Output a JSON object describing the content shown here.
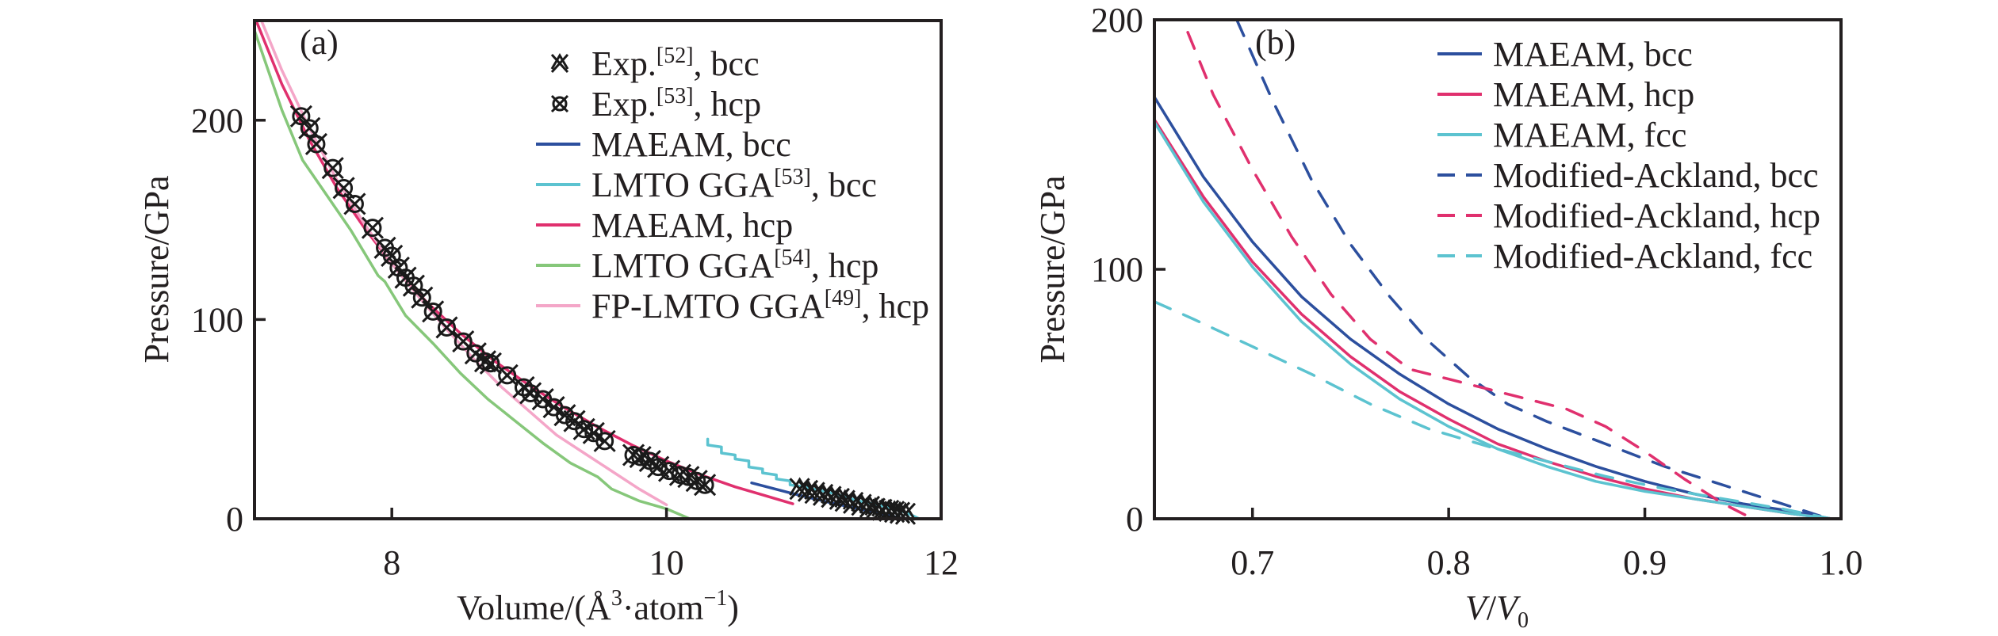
{
  "chart_data": [
    {
      "type": "line",
      "panel_label": "(a)",
      "title": "",
      "xlabel": "Volume/(Å³·atom⁻¹)",
      "xlabel_parts": {
        "main": "Volume/(Å",
        "sup1": "3",
        "mid": "·atom",
        "sup2": "−1",
        "end": ")"
      },
      "ylabel": "Pressure/GPa",
      "xlim": [
        7,
        12
      ],
      "ylim": [
        0,
        250
      ],
      "xticks": [
        8,
        10,
        12
      ],
      "xtick_labels": [
        "8",
        "10",
        "12"
      ],
      "yticks": [
        0,
        100,
        200
      ],
      "ytick_labels": [
        "0",
        "100",
        "200"
      ],
      "grid": false,
      "legend_position": "top-right",
      "series": [
        {
          "name": "Exp.[52], bcc",
          "legend": {
            "main": "Exp.",
            "ref": "[52]",
            "tail": ", bcc"
          },
          "kind": "marker",
          "marker": "x-triangle",
          "color": "#1a1a1a",
          "x": [
            10.97,
            11.03,
            11.08,
            11.14,
            11.2,
            11.26,
            11.3,
            11.36,
            11.42,
            11.48,
            11.52,
            11.57,
            11.62,
            11.66,
            11.7,
            11.74
          ],
          "y": [
            15,
            14,
            13,
            12,
            11,
            10,
            9,
            8,
            7,
            6,
            5,
            4.5,
            4,
            3.5,
            3,
            2.5
          ]
        },
        {
          "name": "Exp.[53], hcp",
          "legend": {
            "main": "Exp.",
            "ref": "[53]",
            "tail": ", hcp"
          },
          "kind": "marker",
          "marker": "circle-x",
          "color": "#1a1a1a",
          "x": [
            7.34,
            7.4,
            7.45,
            7.57,
            7.65,
            7.73,
            7.86,
            7.95,
            8.0,
            8.05,
            8.1,
            8.16,
            8.22,
            8.3,
            8.4,
            8.52,
            8.61,
            8.68,
            8.72,
            8.84,
            8.96,
            9.01,
            9.1,
            9.18,
            9.26,
            9.33,
            9.4,
            9.47,
            9.55,
            9.76,
            9.81,
            9.88,
            9.94,
            10.02,
            10.1,
            10.16,
            10.22,
            10.28
          ],
          "y": [
            202,
            196,
            188,
            176,
            166,
            158,
            146,
            136,
            132,
            126,
            121,
            117,
            111,
            104,
            96,
            89,
            83,
            79,
            78,
            72,
            66,
            63,
            60,
            56,
            52,
            49,
            45,
            43,
            39,
            32,
            31,
            29,
            26,
            24,
            22,
            21,
            19,
            17
          ]
        },
        {
          "name": "MAEAM, bcc",
          "legend": {
            "main": "MAEAM, bcc",
            "ref": "",
            "tail": ""
          },
          "kind": "line",
          "color": "#2c4f9e",
          "x": [
            10.62,
            10.9,
            11.2,
            11.5,
            11.73
          ],
          "y": [
            18,
            13,
            8,
            3.5,
            0
          ]
        },
        {
          "name": "LMTO GGA[53], bcc",
          "legend": {
            "main": "LMTO GGA",
            "ref": "[53]",
            "tail": ", bcc"
          },
          "kind": "line",
          "color": "#5cc3d0",
          "x": [
            10.3,
            10.3,
            10.4,
            10.4,
            10.5,
            10.5,
            10.6,
            10.6,
            10.7,
            10.7,
            10.8,
            10.8,
            10.9,
            10.9,
            11.0,
            11.2,
            11.4,
            11.6,
            11.75,
            11.84
          ],
          "y": [
            40,
            37,
            36,
            33,
            32,
            30,
            29,
            26,
            25,
            23,
            22,
            20,
            19,
            17,
            16,
            13,
            9,
            6,
            3,
            0
          ]
        },
        {
          "name": "MAEAM, hcp",
          "legend": {
            "main": "MAEAM, hcp",
            "ref": "",
            "tail": ""
          },
          "kind": "line",
          "color": "#e0306e",
          "x": [
            7.0,
            7.2,
            7.4,
            7.6,
            7.8,
            8.0,
            8.25,
            8.5,
            8.75,
            9.0,
            9.25,
            9.5,
            9.75,
            10.0,
            10.25,
            10.5,
            10.7,
            10.92
          ],
          "y": [
            252,
            218,
            190,
            166,
            146,
            128,
            109,
            93,
            79,
            67,
            56,
            46,
            37,
            29,
            22,
            16,
            12,
            7.5
          ]
        },
        {
          "name": "LMTO GGA[54], hcp",
          "legend": {
            "main": "LMTO GGA",
            "ref": "[54]",
            "tail": ", hcp"
          },
          "kind": "line",
          "color": "#86c77a",
          "x": [
            7.0,
            7.2,
            7.35,
            7.5,
            7.7,
            7.9,
            7.95,
            8.1,
            8.3,
            8.5,
            8.7,
            8.9,
            9.1,
            9.3,
            9.5,
            9.6,
            9.8,
            10.0,
            10.17
          ],
          "y": [
            245,
            205,
            180,
            165,
            145,
            122,
            119,
            102,
            88,
            73,
            60,
            49,
            38,
            28,
            21,
            15,
            9,
            5,
            0
          ]
        },
        {
          "name": "FP-LMTO GGA[49], hcp",
          "legend": {
            "main": "FP-LMTO GGA",
            "ref": "[49]",
            "tail": ", hcp"
          },
          "kind": "line",
          "color": "#f4a6c8",
          "x": [
            7.02,
            7.2,
            7.4,
            7.6,
            7.8,
            8.0,
            8.2,
            8.4,
            8.6,
            8.8,
            9.0,
            9.2,
            9.4,
            9.6,
            9.8,
            10.0
          ],
          "y": [
            255,
            225,
            196,
            170,
            148,
            128,
            111,
            95,
            80,
            66,
            54,
            42,
            33,
            24,
            15,
            7
          ]
        }
      ]
    },
    {
      "type": "line",
      "panel_label": "(b)",
      "title": "",
      "xlabel": "V/V0",
      "xlabel_parts": {
        "v": "V",
        "slash": "/",
        "v0": "V",
        "sub": "0"
      },
      "ylabel": "Pressure/GPa",
      "xlim": [
        0.65,
        1.0
      ],
      "ylim": [
        0,
        200
      ],
      "xticks": [
        0.7,
        0.8,
        0.9,
        1.0
      ],
      "xtick_labels": [
        "0.7",
        "0.8",
        "0.9",
        "1.0"
      ],
      "yticks": [
        0,
        100,
        200
      ],
      "ytick_labels": [
        "0",
        "100",
        "200"
      ],
      "grid": false,
      "legend_position": "top-right",
      "series": [
        {
          "name": "MAEAM, bcc",
          "kind": "line",
          "dash": "solid",
          "color": "#2c4f9e",
          "x": [
            0.65,
            0.675,
            0.7,
            0.725,
            0.75,
            0.775,
            0.8,
            0.825,
            0.85,
            0.875,
            0.9,
            0.925,
            0.95,
            0.975,
            0.995
          ],
          "y": [
            169,
            137,
            111,
            89,
            72,
            58,
            46,
            36,
            28,
            21,
            15,
            10,
            6,
            3,
            0
          ]
        },
        {
          "name": "MAEAM, hcp",
          "kind": "line",
          "dash": "solid",
          "color": "#e0306e",
          "x": [
            0.65,
            0.675,
            0.7,
            0.725,
            0.75,
            0.775,
            0.8,
            0.825,
            0.85,
            0.875,
            0.9,
            0.925,
            0.95,
            0.975,
            0.995
          ],
          "y": [
            160,
            129,
            103,
            82,
            65,
            51,
            40,
            30,
            23,
            17,
            12,
            8,
            5,
            2,
            0
          ]
        },
        {
          "name": "MAEAM, fcc",
          "kind": "line",
          "dash": "solid",
          "color": "#5cc3d0",
          "x": [
            0.65,
            0.675,
            0.7,
            0.725,
            0.75,
            0.775,
            0.8,
            0.825,
            0.85,
            0.875,
            0.9,
            0.925,
            0.95,
            0.975,
            0.995
          ],
          "y": [
            159,
            127,
            101,
            79,
            62,
            48,
            37,
            28,
            21,
            15,
            11,
            8,
            5,
            2,
            0
          ]
        },
        {
          "name": "Modified-Ackland, bcc",
          "kind": "line",
          "dash": "dashed",
          "color": "#2c4f9e",
          "x": [
            0.692,
            0.71,
            0.73,
            0.75,
            0.77,
            0.79,
            0.81,
            0.83,
            0.85,
            0.87,
            0.89,
            0.91,
            0.93,
            0.95,
            0.97,
            0.99
          ],
          "y": [
            200,
            168,
            136,
            110,
            89,
            71,
            57,
            46,
            39,
            33,
            27,
            21,
            16,
            11,
            6,
            1
          ]
        },
        {
          "name": "Modified-Ackland, hcp",
          "kind": "line",
          "dash": "dashed",
          "color": "#e0306e",
          "x": [
            0.667,
            0.68,
            0.7,
            0.72,
            0.74,
            0.76,
            0.78,
            0.8,
            0.82,
            0.84,
            0.86,
            0.88,
            0.9,
            0.92,
            0.94,
            0.955
          ],
          "y": [
            195,
            170,
            140,
            113,
            90,
            72,
            60,
            56,
            52,
            48,
            44,
            37,
            27,
            16,
            6,
            0
          ]
        },
        {
          "name": "Modified-Ackland, fcc",
          "kind": "line",
          "dash": "dashed",
          "color": "#5cc3d0",
          "x": [
            0.65,
            0.67,
            0.7,
            0.73,
            0.76,
            0.79,
            0.82,
            0.85,
            0.88,
            0.91,
            0.94,
            0.97,
            0.995
          ],
          "y": [
            87,
            80,
            69,
            58,
            46,
            36,
            29,
            23,
            17,
            12,
            8,
            4,
            0
          ]
        }
      ]
    }
  ]
}
